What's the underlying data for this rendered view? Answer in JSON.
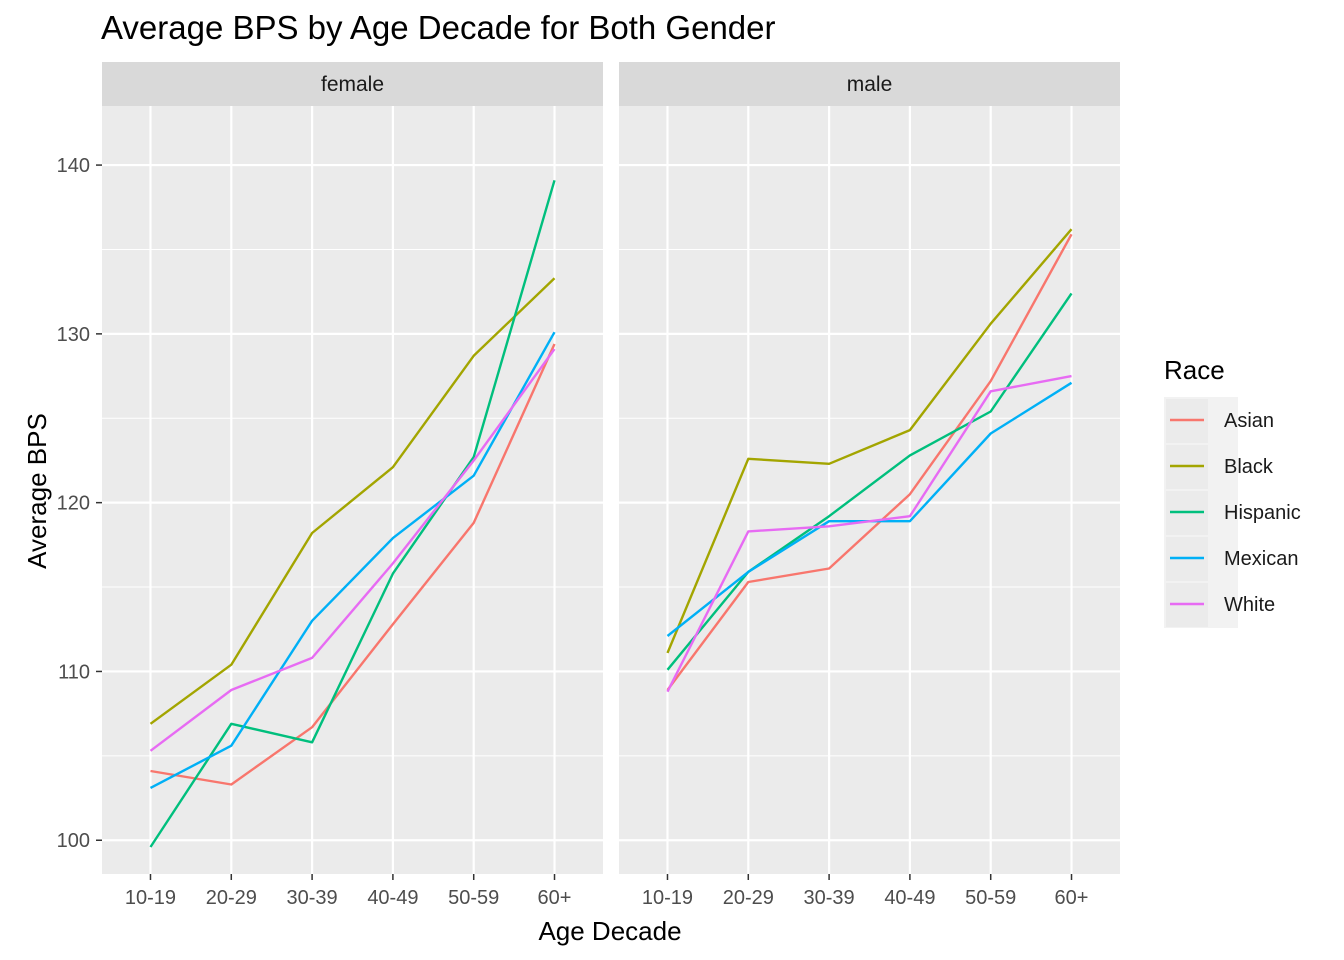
{
  "chart_data": {
    "type": "line",
    "title": "Average BPS by Age Decade for Both Gender",
    "xlabel": "Age Decade",
    "ylabel": "Average BPS",
    "ylim": [
      98,
      143.5
    ],
    "yticks": [
      100,
      110,
      120,
      130,
      140
    ],
    "categories": [
      "10-19",
      "20-29",
      "30-39",
      "40-49",
      "50-59",
      "60+"
    ],
    "legend": {
      "title": "Race",
      "position": "right"
    },
    "grid": true,
    "facets": [
      {
        "label": "female",
        "series": [
          {
            "name": "Asian",
            "color": "#F8766D",
            "values": [
              104.1,
              103.3,
              106.7,
              112.8,
              118.8,
              129.4
            ]
          },
          {
            "name": "Black",
            "color": "#A3A500",
            "values": [
              106.9,
              110.4,
              118.2,
              122.1,
              128.7,
              133.3
            ]
          },
          {
            "name": "Hispanic",
            "color": "#00BF7D",
            "values": [
              99.6,
              106.9,
              105.8,
              115.8,
              122.7,
              139.1
            ]
          },
          {
            "name": "Mexican",
            "color": "#00B0F6",
            "values": [
              103.1,
              105.6,
              113.0,
              117.9,
              121.6,
              130.1
            ]
          },
          {
            "name": "White",
            "color": "#E76BF3",
            "values": [
              105.3,
              108.9,
              110.8,
              116.4,
              122.5,
              129.1
            ]
          }
        ]
      },
      {
        "label": "male",
        "series": [
          {
            "name": "Asian",
            "color": "#F8766D",
            "values": [
              108.9,
              115.3,
              116.1,
              120.5,
              127.2,
              135.9
            ]
          },
          {
            "name": "Black",
            "color": "#A3A500",
            "values": [
              111.1,
              122.6,
              122.3,
              124.3,
              130.6,
              136.2
            ]
          },
          {
            "name": "Hispanic",
            "color": "#00BF7D",
            "values": [
              110.1,
              115.9,
              119.2,
              122.8,
              125.4,
              132.4
            ]
          },
          {
            "name": "Mexican",
            "color": "#00B0F6",
            "values": [
              112.1,
              115.9,
              118.9,
              118.9,
              124.1,
              127.1
            ]
          },
          {
            "name": "White",
            "color": "#E76BF3",
            "values": [
              108.8,
              118.3,
              118.6,
              119.2,
              126.6,
              127.5
            ]
          }
        ]
      }
    ]
  }
}
